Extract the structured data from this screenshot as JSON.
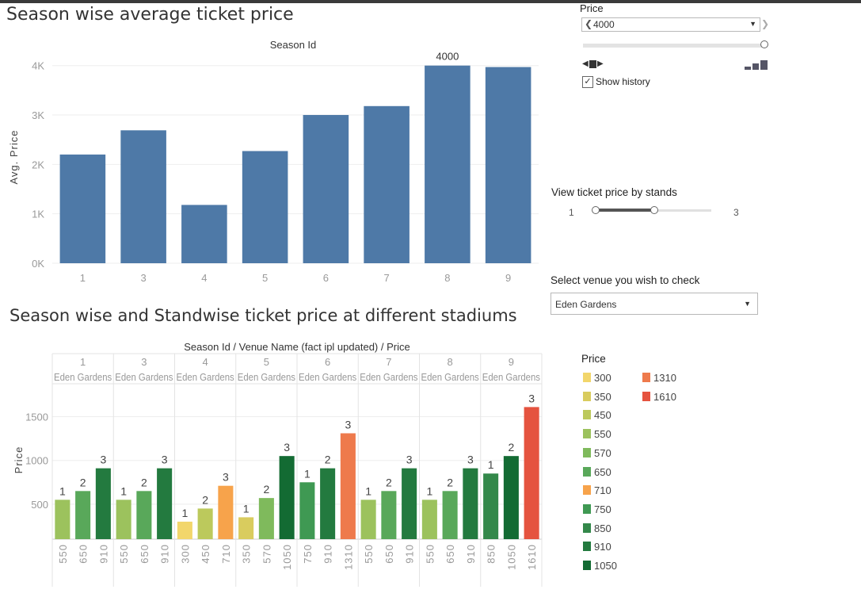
{
  "titles": {
    "chart1": "Season wise average ticket price",
    "chart2": "Season wise and Standwise ticket price at different stadiums"
  },
  "chart_data": [
    {
      "type": "bar",
      "title": "Season wise average ticket price",
      "xlabel": "Season Id",
      "ylabel": "Avg. Price",
      "categories": [
        "1",
        "3",
        "4",
        "5",
        "6",
        "7",
        "8",
        "9"
      ],
      "values": [
        2200,
        2690,
        1180,
        2270,
        3000,
        3180,
        4000,
        3970
      ],
      "annotation": {
        "category": "8",
        "label": "4000"
      },
      "yticks": [
        "0K",
        "1K",
        "2K",
        "3K",
        "4K"
      ],
      "ylim": [
        0,
        4300
      ],
      "color": "#4e79a7"
    },
    {
      "type": "bar",
      "title": "Season wise and Standwise ticket price at different stadiums",
      "header": "Season Id / Venue Name (fact ipl updated) / Price",
      "ylabel": "Price",
      "yticks": [
        "500",
        "1000",
        "1500"
      ],
      "ylim": [
        100,
        1840
      ],
      "groups": [
        {
          "season": "1",
          "venue": "Eden Gardens",
          "bars": [
            {
              "stand": "1",
              "price": 550
            },
            {
              "stand": "2",
              "price": 650
            },
            {
              "stand": "3",
              "price": 910
            }
          ]
        },
        {
          "season": "3",
          "venue": "Eden Gardens",
          "bars": [
            {
              "stand": "1",
              "price": 550
            },
            {
              "stand": "2",
              "price": 650
            },
            {
              "stand": "3",
              "price": 910
            }
          ]
        },
        {
          "season": "4",
          "venue": "Eden Gardens",
          "bars": [
            {
              "stand": "1",
              "price": 300
            },
            {
              "stand": "2",
              "price": 450
            },
            {
              "stand": "3",
              "price": 710
            }
          ]
        },
        {
          "season": "5",
          "venue": "Eden Gardens",
          "bars": [
            {
              "stand": "1",
              "price": 350
            },
            {
              "stand": "2",
              "price": 570
            },
            {
              "stand": "3",
              "price": 1050
            }
          ]
        },
        {
          "season": "6",
          "venue": "Eden Gardens",
          "bars": [
            {
              "stand": "1",
              "price": 750
            },
            {
              "stand": "2",
              "price": 910
            },
            {
              "stand": "3",
              "price": 1310
            }
          ]
        },
        {
          "season": "7",
          "venue": "Eden Gardens",
          "bars": [
            {
              "stand": "1",
              "price": 550
            },
            {
              "stand": "2",
              "price": 650
            },
            {
              "stand": "3",
              "price": 910
            }
          ]
        },
        {
          "season": "8",
          "venue": "Eden Gardens",
          "bars": [
            {
              "stand": "1",
              "price": 550
            },
            {
              "stand": "2",
              "price": 650
            },
            {
              "stand": "3",
              "price": 910
            }
          ]
        },
        {
          "season": "9",
          "venue": "Eden Gardens",
          "bars": [
            {
              "stand": "1",
              "price": 850
            },
            {
              "stand": "2",
              "price": 1050
            },
            {
              "stand": "3",
              "price": 1610
            }
          ]
        }
      ],
      "legend": {
        "title": "Price",
        "entries": [
          {
            "value": "300",
            "color": "#f2d66b"
          },
          {
            "value": "350",
            "color": "#d9cc5e"
          },
          {
            "value": "450",
            "color": "#bcc95c"
          },
          {
            "value": "550",
            "color": "#9cc25d"
          },
          {
            "value": "570",
            "color": "#7fba5c"
          },
          {
            "value": "650",
            "color": "#59a85a"
          },
          {
            "value": "710",
            "color": "#f7a34b"
          },
          {
            "value": "750",
            "color": "#3f9953"
          },
          {
            "value": "850",
            "color": "#33884a"
          },
          {
            "value": "910",
            "color": "#237a3f"
          },
          {
            "value": "1050",
            "color": "#136b33"
          },
          {
            "value": "1310",
            "color": "#ee7a4c"
          },
          {
            "value": "1610",
            "color": "#e5533f"
          }
        ]
      }
    }
  ],
  "controls": {
    "price_filter": {
      "label": "Price",
      "value": "4000",
      "show_history": "Show history"
    },
    "stands_filter": {
      "label": "View ticket price by stands",
      "min": "1",
      "max": "3",
      "selected_fraction": 0.5
    },
    "venue_filter": {
      "label": "Select venue you wish to check",
      "value": "Eden Gardens"
    }
  }
}
